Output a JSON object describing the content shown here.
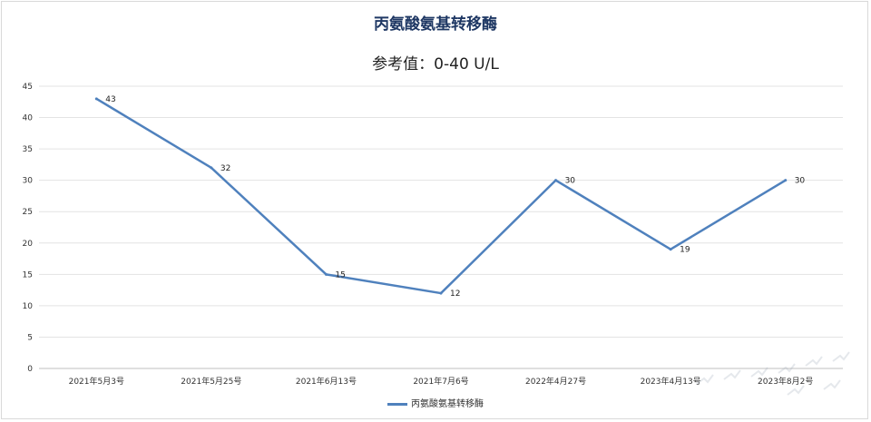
{
  "chart_data": {
    "type": "line",
    "title": "丙氨酸氨基转移酶",
    "subtitle": "参考值：0-40 U/L",
    "categories": [
      "2021年5月3号",
      "2021年5月25号",
      "2021年6月13号",
      "2021年7月6号",
      "2022年4月27号",
      "2023年4月13号",
      "2023年8月2号"
    ],
    "series": [
      {
        "name": "丙氨酸氨基转移酶",
        "values": [
          43,
          32,
          15,
          12,
          30,
          19,
          30
        ],
        "color": "#4f81bd"
      }
    ],
    "ylim": [
      0,
      45
    ],
    "yticks": [
      0,
      5,
      10,
      15,
      20,
      25,
      30,
      35,
      40,
      45
    ],
    "grid": true,
    "legend_position": "bottom"
  }
}
